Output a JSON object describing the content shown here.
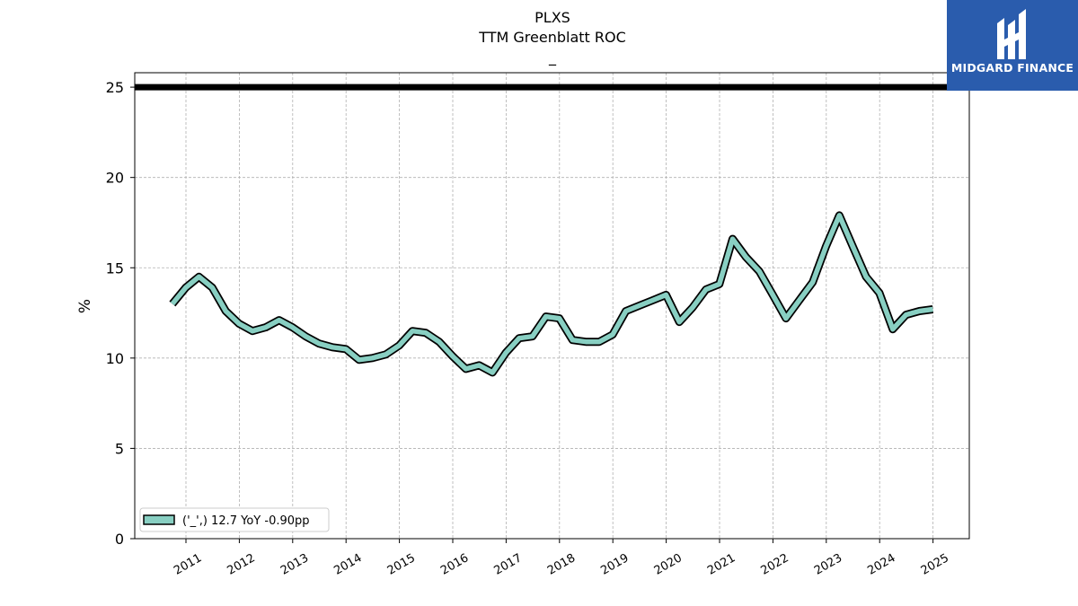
{
  "chart_data": {
    "type": "line",
    "title": "PLXS",
    "subtitle": "TTM Greenblatt ROC",
    "subtitle2": "_",
    "ylabel": "%",
    "xlabel": "",
    "ylim": [
      0,
      25.8
    ],
    "yticks": [
      "0",
      "5",
      "10",
      "15",
      "20",
      "25"
    ],
    "xticks": [
      "2011",
      "2012",
      "2013",
      "2014",
      "2015",
      "2016",
      "2017",
      "2018",
      "2019",
      "2020",
      "2021",
      "2022",
      "2023",
      "2024",
      "2025"
    ],
    "grid": true,
    "legend_position": "lower-left",
    "reference_line": {
      "y": 25,
      "color": "#000000"
    },
    "series": [
      {
        "name": "('_',) 12.7 YoY -0.90pp",
        "color": "#88cfc2",
        "x": [
          "2010-09-30",
          "2010-12-31",
          "2011-03-31",
          "2011-06-30",
          "2011-09-30",
          "2011-12-31",
          "2012-03-31",
          "2012-06-30",
          "2012-09-30",
          "2012-12-31",
          "2013-03-31",
          "2013-06-30",
          "2013-09-30",
          "2013-12-31",
          "2014-03-31",
          "2014-06-30",
          "2014-09-30",
          "2014-12-31",
          "2015-03-31",
          "2015-06-30",
          "2015-09-30",
          "2015-12-31",
          "2016-03-31",
          "2016-06-30",
          "2016-09-30",
          "2016-12-31",
          "2017-03-31",
          "2017-06-30",
          "2017-09-30",
          "2017-12-31",
          "2018-03-31",
          "2018-06-30",
          "2018-09-30",
          "2018-12-31",
          "2019-03-31",
          "2019-06-30",
          "2019-09-30",
          "2019-12-31",
          "2020-03-31",
          "2020-06-30",
          "2020-09-30",
          "2020-12-31",
          "2021-03-31",
          "2021-06-30",
          "2021-09-30",
          "2021-12-31",
          "2022-03-31",
          "2022-06-30",
          "2022-09-30",
          "2022-12-31",
          "2023-03-31",
          "2023-06-30",
          "2023-09-30",
          "2023-12-31",
          "2024-03-31",
          "2024-06-30",
          "2024-09-30",
          "2024-12-31"
        ],
        "values": [
          13.0,
          13.9,
          14.5,
          13.9,
          12.6,
          11.9,
          11.5,
          11.7,
          12.1,
          11.7,
          11.2,
          10.8,
          10.6,
          10.5,
          9.9,
          10.0,
          10.2,
          10.7,
          11.5,
          11.4,
          10.9,
          10.1,
          9.4,
          9.6,
          9.2,
          10.3,
          11.1,
          11.2,
          12.3,
          12.2,
          11.0,
          10.9,
          10.9,
          11.3,
          12.6,
          12.9,
          13.2,
          13.5,
          12.0,
          12.8,
          13.8,
          14.1,
          16.6,
          15.6,
          14.8,
          13.5,
          12.2,
          13.2,
          14.2,
          16.2,
          17.9,
          16.2,
          14.5,
          13.6,
          11.6,
          12.4,
          12.6,
          12.7
        ]
      }
    ]
  },
  "logo": {
    "text": "MIDGARD FINANCE",
    "background": "#2a5cad"
  }
}
